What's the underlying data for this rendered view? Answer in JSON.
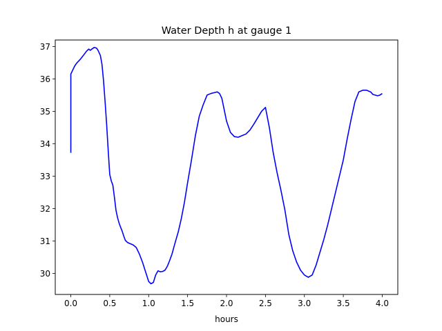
{
  "chart_data": {
    "type": "line",
    "title": "Water Depth h at gauge 1",
    "xlabel": "hours",
    "ylabel": "",
    "xlim": [
      -0.2,
      4.2
    ],
    "ylim": [
      29.35,
      37.2
    ],
    "xticks": [
      0.0,
      0.5,
      1.0,
      1.5,
      2.0,
      2.5,
      3.0,
      3.5,
      4.0
    ],
    "xtick_labels": [
      "0.0",
      "0.5",
      "1.0",
      "1.5",
      "2.0",
      "2.5",
      "3.0",
      "3.5",
      "4.0"
    ],
    "yticks": [
      30,
      31,
      32,
      33,
      34,
      35,
      36,
      37
    ],
    "ytick_labels": [
      "30",
      "31",
      "32",
      "33",
      "34",
      "35",
      "36",
      "37"
    ],
    "grid": false,
    "legend": "none",
    "series": [
      {
        "color": "#0000ff",
        "x": [
          0.0,
          0.0,
          0.02,
          0.05,
          0.08,
          0.12,
          0.16,
          0.2,
          0.23,
          0.25,
          0.27,
          0.3,
          0.33,
          0.35,
          0.38,
          0.4,
          0.42,
          0.44,
          0.46,
          0.48,
          0.5,
          0.52,
          0.54,
          0.56,
          0.58,
          0.6,
          0.62,
          0.64,
          0.66,
          0.68,
          0.7,
          0.73,
          0.76,
          0.8,
          0.84,
          0.88,
          0.92,
          0.96,
          1.0,
          1.03,
          1.06,
          1.09,
          1.12,
          1.15,
          1.18,
          1.21,
          1.24,
          1.27,
          1.3,
          1.34,
          1.38,
          1.42,
          1.46,
          1.5,
          1.55,
          1.6,
          1.65,
          1.7,
          1.75,
          1.8,
          1.85,
          1.88,
          1.91,
          1.94,
          1.97,
          2.0,
          2.05,
          2.1,
          2.15,
          2.2,
          2.25,
          2.3,
          2.35,
          2.4,
          2.45,
          2.5,
          2.55,
          2.6,
          2.65,
          2.7,
          2.75,
          2.8,
          2.85,
          2.9,
          2.95,
          3.0,
          3.05,
          3.1,
          3.15,
          3.2,
          3.25,
          3.3,
          3.35,
          3.4,
          3.45,
          3.5,
          3.55,
          3.6,
          3.65,
          3.7,
          3.75,
          3.8,
          3.85,
          3.88,
          3.91,
          3.94,
          3.97,
          4.0
        ],
        "y": [
          33.72,
          36.15,
          36.25,
          36.4,
          36.5,
          36.6,
          36.72,
          36.85,
          36.92,
          36.88,
          36.92,
          36.97,
          36.95,
          36.88,
          36.72,
          36.45,
          35.95,
          35.3,
          34.6,
          33.8,
          33.05,
          32.85,
          32.72,
          32.35,
          31.95,
          31.72,
          31.55,
          31.42,
          31.3,
          31.15,
          31.02,
          30.95,
          30.92,
          30.88,
          30.8,
          30.6,
          30.35,
          30.05,
          29.75,
          29.68,
          29.72,
          29.95,
          30.08,
          30.05,
          30.06,
          30.1,
          30.22,
          30.4,
          30.6,
          30.95,
          31.28,
          31.7,
          32.2,
          32.8,
          33.5,
          34.25,
          34.85,
          35.2,
          35.5,
          35.55,
          35.58,
          35.6,
          35.55,
          35.4,
          35.05,
          34.7,
          34.35,
          34.22,
          34.2,
          34.25,
          34.3,
          34.42,
          34.6,
          34.8,
          35.0,
          35.12,
          34.5,
          33.72,
          33.1,
          32.55,
          31.95,
          31.2,
          30.7,
          30.35,
          30.1,
          29.95,
          29.88,
          29.95,
          30.25,
          30.65,
          31.05,
          31.5,
          32.0,
          32.5,
          33.0,
          33.5,
          34.15,
          34.75,
          35.3,
          35.6,
          35.65,
          35.65,
          35.6,
          35.52,
          35.5,
          35.48,
          35.5,
          35.55
        ]
      }
    ]
  }
}
